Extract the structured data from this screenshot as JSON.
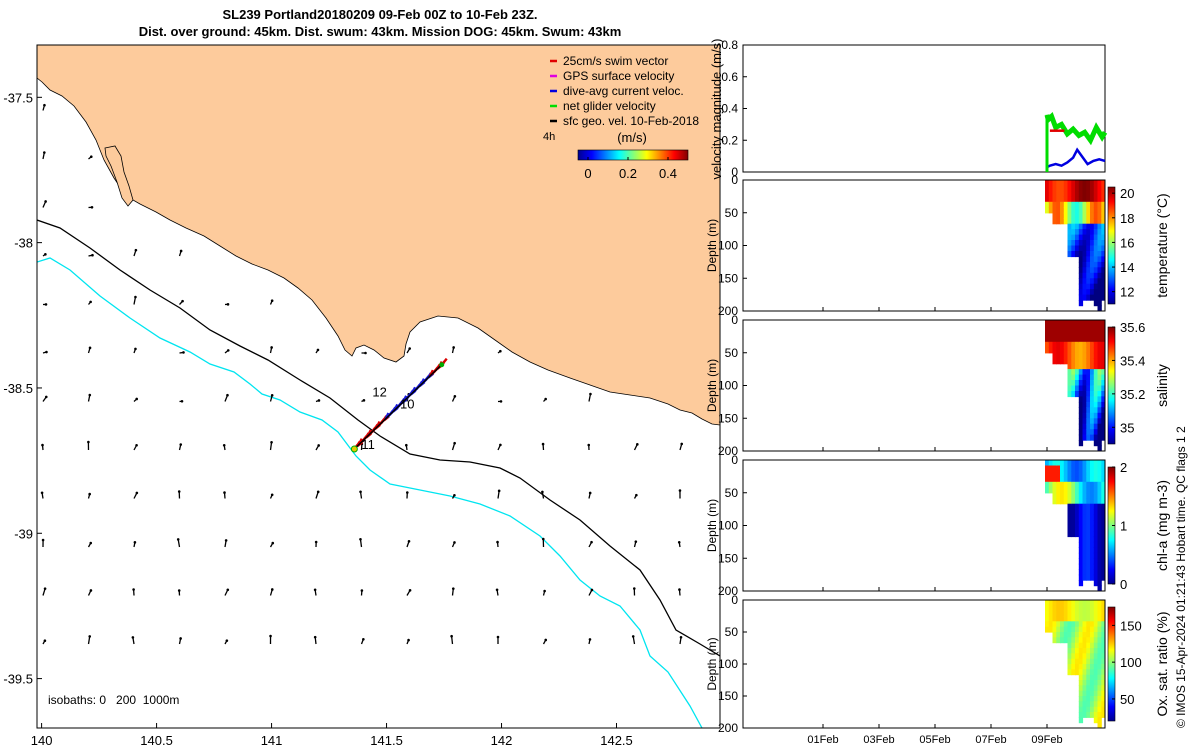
{
  "header": {
    "title_line1": "SL239 Portland20180209 09-Feb 00Z to 10-Feb 23Z.",
    "title_line2": "Dist. over ground: 45km. Dist. swum: 43km. Mission DOG: 45km. Swum: 43km"
  },
  "chart_data": [
    {
      "type": "map",
      "xticks": [
        "140",
        "140.5",
        "141",
        "141.5",
        "142",
        "142.5"
      ],
      "yticks": [
        "-37.5",
        "-38",
        "-38.5",
        "-39",
        "-39.5"
      ],
      "xlim": [
        139.98,
        142.95
      ],
      "ylim": [
        -39.67,
        -37.32
      ],
      "legend": [
        {
          "label": "25cm/s swim vector",
          "color": "#e00000"
        },
        {
          "label": "GPS surface velocity",
          "color": "#e000e0"
        },
        {
          "label": "dive-avg current veloc.",
          "color": "#0000e0"
        },
        {
          "label": "net glider velocity",
          "color": "#00dd00"
        },
        {
          "label": "sfc geo. vel. 10-Feb-2018",
          "color": "#000000"
        }
      ],
      "legend_placement": "top-right",
      "scale_label": "4h",
      "colorbar": {
        "title": "(m/s)",
        "ticks": [
          "0",
          "0.2",
          "0.4"
        ],
        "range": [
          -0.05,
          0.5
        ]
      },
      "isobaths_label": "isobaths: 0   200  1000m",
      "track": {
        "start": [
          141.36,
          -38.71
        ],
        "end": [
          141.74,
          -38.42
        ]
      },
      "track_annotations": [
        {
          "text": "12",
          "x": 141.47,
          "y": -38.53
        },
        {
          "text": "10",
          "x": 141.59,
          "y": -38.57
        },
        {
          "text": "11",
          "x": 141.42,
          "y": -38.71
        }
      ],
      "colors": {
        "land": "#fdcb9c",
        "isobath_200": "#000000",
        "isobath_1000": "#00e5f0"
      }
    },
    {
      "type": "line",
      "ylabel": "velocity magnitude (m/s)",
      "ylim": [
        0,
        0.8
      ],
      "yticks": [
        "0",
        "0.2",
        "0.4",
        "0.6",
        "0.8"
      ],
      "x_range": [
        "01Feb",
        "09Feb"
      ],
      "series": [
        {
          "color": "#00dd00",
          "x": [
            0,
            0.02,
            0.08,
            0.15,
            0.25,
            0.35,
            0.45,
            0.55,
            0.65,
            0.75,
            0.85,
            0.95,
            1.0
          ],
          "values": [
            0.36,
            0.33,
            0.35,
            0.28,
            0.3,
            0.24,
            0.27,
            0.23,
            0.25,
            0.2,
            0.28,
            0.22,
            0.25
          ]
        },
        {
          "color": "#0000e0",
          "x": [
            0,
            0.05,
            0.15,
            0.25,
            0.35,
            0.45,
            0.52,
            0.6,
            0.7,
            0.8,
            0.9,
            1.0
          ],
          "values": [
            0.03,
            0.04,
            0.05,
            0.04,
            0.06,
            0.09,
            0.14,
            0.1,
            0.05,
            0.07,
            0.08,
            0.07
          ]
        },
        {
          "color": "#e00000",
          "x": [
            0.05,
            0.3
          ],
          "values": [
            0.26,
            0.26
          ]
        }
      ]
    },
    {
      "type": "heatmap",
      "ylabel": "Depth (m)",
      "label": "temperature (°C)",
      "ylim": [
        0,
        200
      ],
      "yticks": [
        "0",
        "50",
        "100",
        "150",
        "200"
      ],
      "colorbar": {
        "ticks": [
          "12",
          "14",
          "16",
          "18",
          "20"
        ],
        "range": [
          11,
          20.5
        ]
      }
    },
    {
      "type": "heatmap",
      "ylabel": "Depth (m)",
      "label": "salinity",
      "ylim": [
        0,
        200
      ],
      "yticks": [
        "0",
        "50",
        "100",
        "150",
        "200"
      ],
      "colorbar": {
        "ticks": [
          "35",
          "35.2",
          "35.4",
          "35.6"
        ],
        "range": [
          34.9,
          35.6
        ]
      }
    },
    {
      "type": "heatmap",
      "ylabel": "Depth (m)",
      "label": "chl-a (mg m-3)",
      "ylim": [
        0,
        200
      ],
      "yticks": [
        "0",
        "50",
        "100",
        "150",
        "200"
      ],
      "colorbar": {
        "ticks": [
          "0",
          "1",
          "2"
        ],
        "range": [
          0,
          2
        ]
      }
    },
    {
      "type": "heatmap",
      "ylabel": "Depth (m)",
      "label": "Ox. sat. ratio (%)",
      "ylim": [
        0,
        200
      ],
      "yticks": [
        "0",
        "50",
        "100",
        "150",
        "200"
      ],
      "xticks": [
        "01Feb",
        "03Feb",
        "05Feb",
        "07Feb",
        "09Feb"
      ],
      "colorbar": {
        "ticks": [
          "50",
          "100",
          "150"
        ],
        "range": [
          20,
          175
        ]
      }
    }
  ],
  "credit": "© IMOS 15-Apr-2024 01:21:43 Hobart time. QC flags 1  2"
}
